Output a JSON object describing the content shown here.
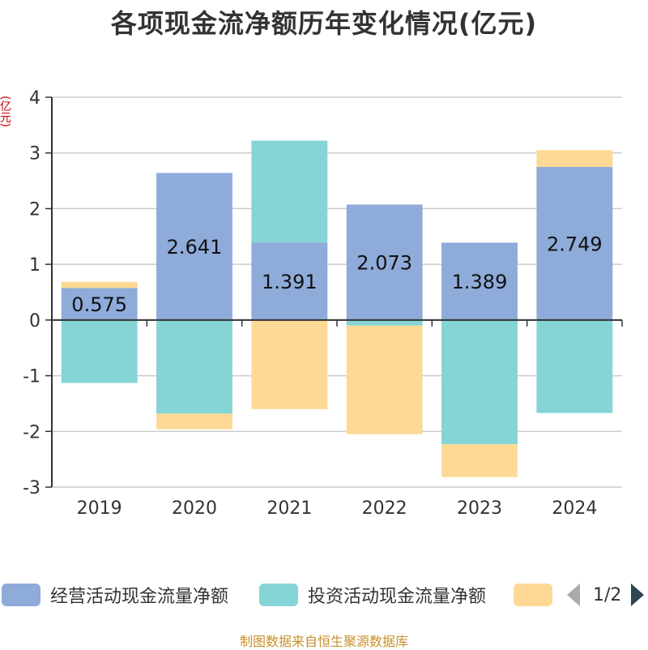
{
  "chart_data": {
    "type": "bar",
    "stacked": true,
    "title": "各项现金流净额历年变化情况(亿元)",
    "unit": "(亿元)",
    "categories": [
      "2019",
      "2020",
      "2021",
      "2022",
      "2023",
      "2024"
    ],
    "ylim": [
      -3,
      4
    ],
    "yticks": [
      4,
      3,
      2,
      1,
      0,
      -1,
      -2,
      -3
    ],
    "ytick_labels": [
      "4",
      "3",
      "2",
      "1",
      "0",
      "-1",
      "-2",
      "-3"
    ],
    "grid": true,
    "series": [
      {
        "name": "经营活动现金流量净额",
        "color": "#8eabd9",
        "values": [
          0.575,
          2.641,
          1.391,
          2.073,
          1.389,
          2.749
        ],
        "labels": [
          "0.575",
          "2.641",
          "1.391",
          "2.073",
          "1.389",
          "2.749"
        ]
      },
      {
        "name": "投资活动现金流量净额",
        "color": "#85d4d6",
        "values": [
          -1.13,
          -1.68,
          1.83,
          -0.1,
          -2.23,
          -1.67
        ]
      },
      {
        "color": "#fdd995",
        "values": [
          0.11,
          -0.28,
          -1.6,
          -1.95,
          -0.59,
          0.3
        ]
      }
    ]
  },
  "legend": {
    "items": [
      {
        "label": "经营活动现金流量净额",
        "color": "#8eabd9"
      },
      {
        "label": "投资活动现金流量净额",
        "color": "#85d4d6"
      },
      {
        "label": "",
        "color": "#fdd995"
      }
    ],
    "page": "1/2"
  },
  "source": "制图数据来自恒生聚源数据库"
}
